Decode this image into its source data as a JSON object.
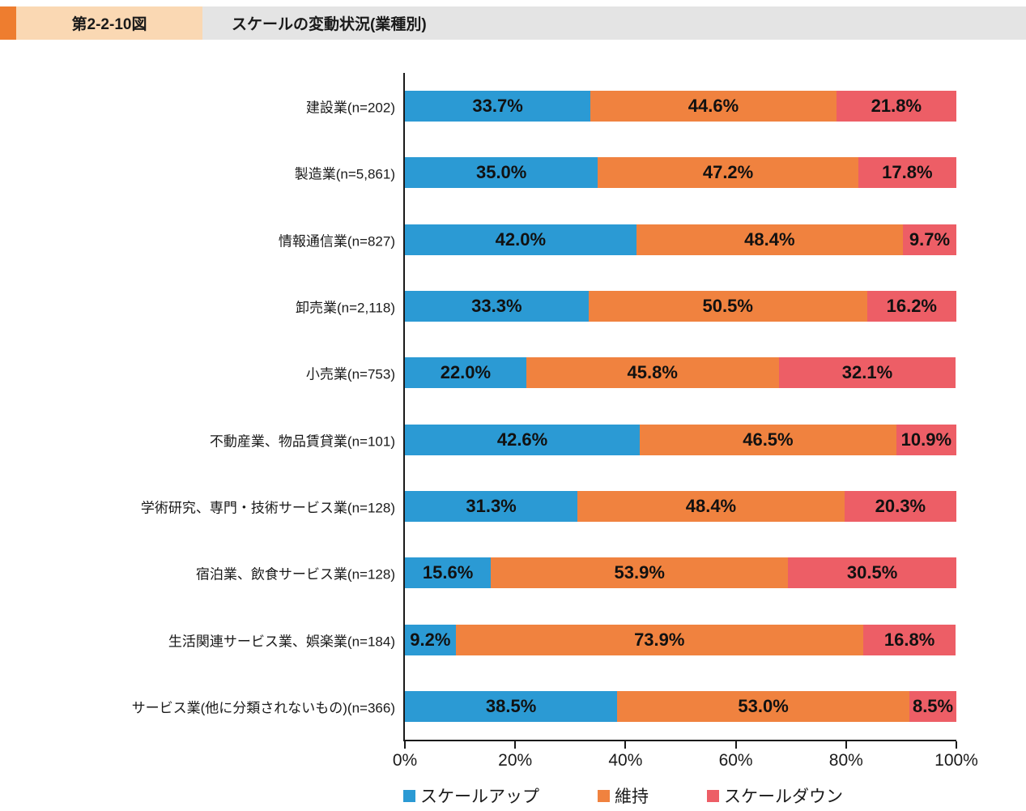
{
  "header": {
    "figure_label": "第2-2-10図",
    "title": "スケールの変動状況(業種別)"
  },
  "colors": {
    "header_accent": "#EE7D2F",
    "header_label_bg": "#FAD8B3",
    "header_title_bg": "#E4E4E4",
    "scale_up": "#2B9AD4",
    "maintain": "#F0823F",
    "scale_down": "#ED5E66"
  },
  "chart_data": {
    "type": "bar",
    "orientation": "horizontal-stacked",
    "title": "スケールの変動状況(業種別)",
    "categories": [
      "建設業(n=202)",
      "製造業(n=5,861)",
      "情報通信業(n=827)",
      "卸売業(n=2,118)",
      "小売業(n=753)",
      "不動産業、物品賃貸業(n=101)",
      "学術研究、専門・技術サービス業(n=128)",
      "宿泊業、飲食サービス業(n=128)",
      "生活関連サービス業、娯楽業(n=184)",
      "サービス業(他に分類されないもの)(n=366)"
    ],
    "series": [
      {
        "key": "scale-up",
        "name": "スケールアップ",
        "color": "#2B9AD4",
        "values": [
          33.7,
          35.0,
          42.0,
          33.3,
          22.0,
          42.6,
          31.3,
          15.6,
          9.2,
          38.5
        ]
      },
      {
        "key": "maintain",
        "name": "維持",
        "color": "#F0823F",
        "values": [
          44.6,
          47.2,
          48.4,
          50.5,
          45.8,
          46.5,
          48.4,
          53.9,
          73.9,
          53.0
        ]
      },
      {
        "key": "scale-down",
        "name": "スケールダウン",
        "color": "#ED5E66",
        "values": [
          21.8,
          17.8,
          9.7,
          16.2,
          32.1,
          10.9,
          20.3,
          30.5,
          16.8,
          8.5
        ]
      }
    ],
    "x_ticks": [
      "0%",
      "20%",
      "40%",
      "60%",
      "80%",
      "100%"
    ],
    "xlim": [
      0,
      100
    ],
    "value_suffix": "%",
    "grid": false,
    "legend_position": "bottom"
  }
}
